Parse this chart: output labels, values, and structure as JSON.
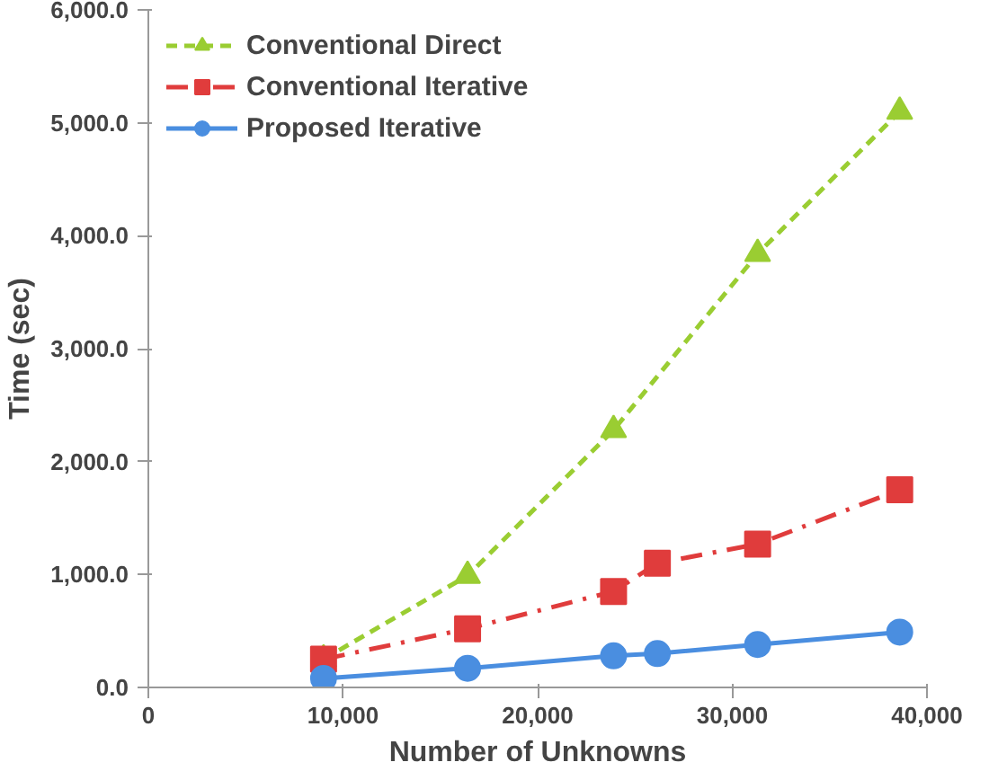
{
  "chart_data": {
    "type": "line",
    "xlabel": "Number of Unknowns",
    "ylabel": "Time (sec)",
    "xlim": [
      0,
      40000
    ],
    "ylim": [
      0,
      6000
    ],
    "xticks": [
      0,
      {
        "value": 10000,
        "label": "10,000"
      },
      {
        "value": 20000,
        "label": "20,000"
      },
      {
        "value": 30000,
        "label": "30,000"
      },
      {
        "value": 40000,
        "label": "40,000"
      }
    ],
    "yticks": [
      {
        "value": 0,
        "label": "0.0"
      },
      {
        "value": 1000,
        "label": "1,000.0"
      },
      {
        "value": 2000,
        "label": "2,000.0"
      },
      {
        "value": 3000,
        "label": "3,000.0"
      },
      {
        "value": 4000,
        "label": "4,000.0"
      },
      {
        "value": 5000,
        "label": "5,000.0"
      },
      {
        "value": 6000,
        "label": "6,000.0"
      }
    ],
    "grid": false,
    "legend": "top left",
    "series": [
      {
        "name": "Conventional Direct",
        "color": "#9acd32",
        "marker": "triangle",
        "line_style": "dashed",
        "x": [
          9000,
          16400,
          23900,
          31300,
          38600
        ],
        "values": [
          250,
          990,
          2280,
          3840,
          5100
        ]
      },
      {
        "name": "Conventional Iterative",
        "color": "#e03c3c",
        "marker": "square",
        "line_style": "dashdot",
        "x": [
          9000,
          16400,
          23900,
          26150,
          31300,
          38600
        ],
        "values": [
          250,
          520,
          850,
          1100,
          1270,
          1750
        ]
      },
      {
        "name": "Proposed Iterative",
        "color": "#4a8ee0",
        "marker": "circle",
        "line_style": "solid",
        "x": [
          9000,
          16400,
          23900,
          26150,
          31300,
          38600
        ],
        "values": [
          80,
          170,
          280,
          300,
          380,
          490
        ]
      }
    ]
  }
}
